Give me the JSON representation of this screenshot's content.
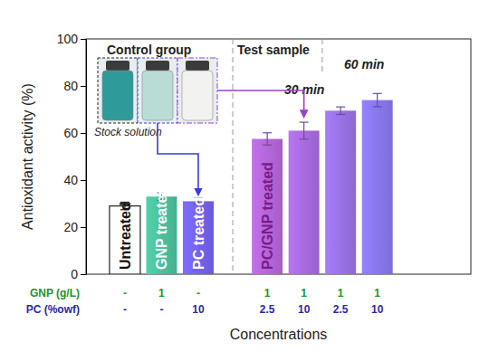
{
  "chart_data": {
    "type": "bar",
    "categories": [
      "Untreated",
      "GNP treated",
      "PC treated",
      "PC/GNP treated",
      null,
      null,
      null
    ],
    "values": [
      29,
      33,
      31,
      57.5,
      61,
      69.5,
      74
    ],
    "errors": [
      1.6,
      1.6,
      1.2,
      2.6,
      3.6,
      1.6,
      2.8
    ],
    "colors": [
      "#ffffff",
      "#45b08f",
      "#6a5ad8",
      "#a45ec6",
      "#9a62cc",
      "#8c68d2",
      "#7d6dda"
    ],
    "ylim": [
      0,
      100
    ],
    "yticks": [
      0,
      20,
      40,
      60,
      80,
      100
    ],
    "y_label": "Antioxidant activity (%)",
    "x_label": "Concentrations",
    "concentration_rows": [
      {
        "name": "GNP (g/L)",
        "color": "#22962a",
        "labels": [
          "-",
          "1",
          "-",
          "1",
          "1",
          "1",
          "1"
        ]
      },
      {
        "name": "PC (%owf)",
        "color": "#2b2aa6",
        "labels": [
          "-",
          "-",
          "10",
          "2.5",
          "10",
          "2.5",
          "10"
        ]
      }
    ],
    "annotations": {
      "control": "Control group",
      "test": "Test sample",
      "stock": "Stock solution",
      "times": [
        "30 min",
        "60 min"
      ]
    }
  }
}
